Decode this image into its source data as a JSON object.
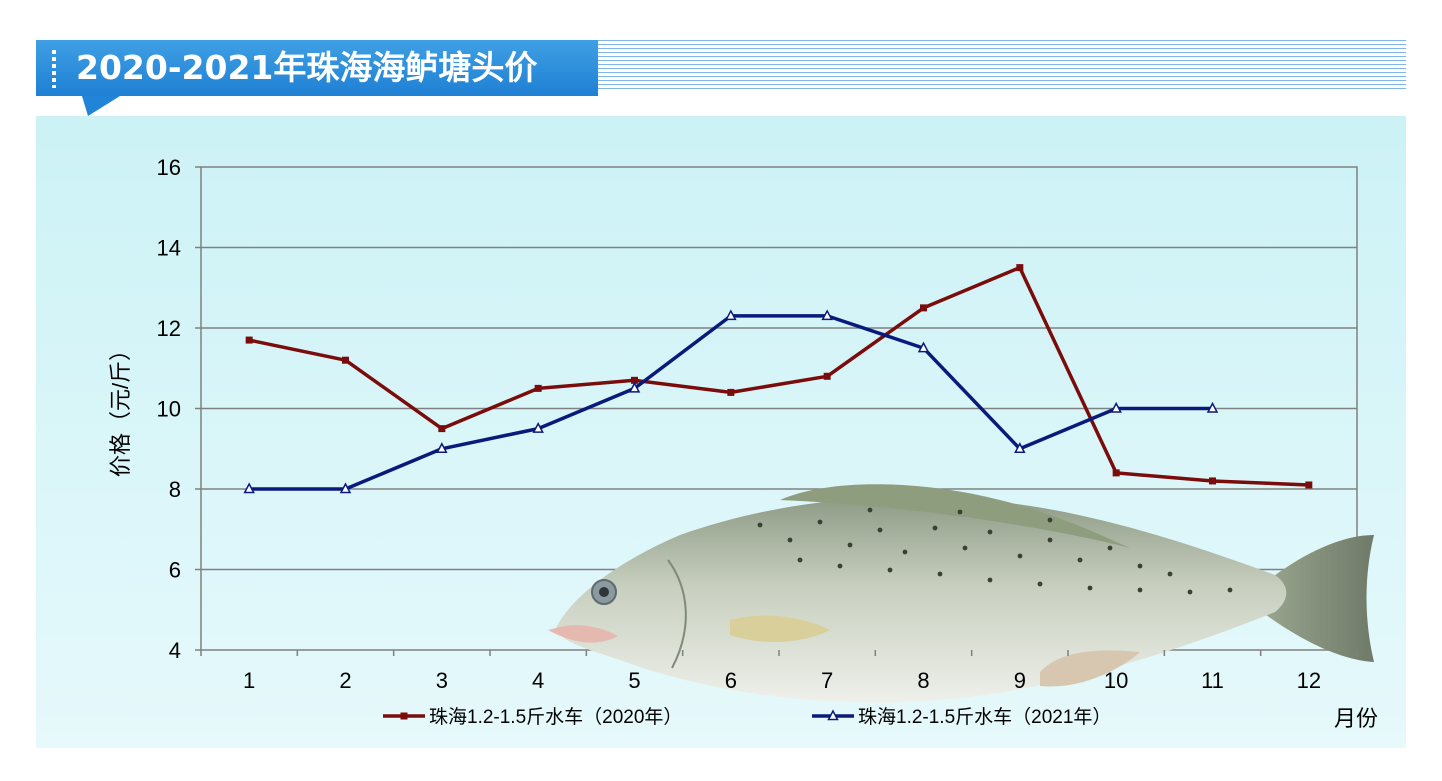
{
  "header": {
    "title": "2020-2021年珠海海鲈塘头价"
  },
  "chart_data": {
    "type": "line",
    "title": "",
    "xlabel": "月份",
    "ylabel": "价格（元/斤）",
    "categories": [
      "1",
      "2",
      "3",
      "4",
      "5",
      "6",
      "7",
      "8",
      "9",
      "10",
      "11",
      "12"
    ],
    "ylim": [
      4,
      16
    ],
    "yticks": [
      4,
      6,
      8,
      10,
      12,
      14,
      16
    ],
    "grid": true,
    "legend_position": "bottom",
    "series": [
      {
        "name": "珠海1.2-1.5斤水车（2020年）",
        "color": "#7a0c0c",
        "marker": "square",
        "values": [
          11.7,
          11.2,
          9.5,
          10.5,
          10.7,
          10.4,
          10.8,
          12.5,
          13.5,
          8.4,
          8.2,
          8.1
        ]
      },
      {
        "name": "珠海1.2-1.5斤水车（2021年）",
        "color": "#0a1a7a",
        "marker": "triangle",
        "values": [
          8.0,
          8.0,
          9.0,
          9.5,
          10.5,
          12.3,
          12.3,
          11.5,
          9.0,
          10.0,
          10.0,
          null
        ]
      }
    ]
  },
  "decoration": {
    "photo": "sea-bass-fish"
  }
}
